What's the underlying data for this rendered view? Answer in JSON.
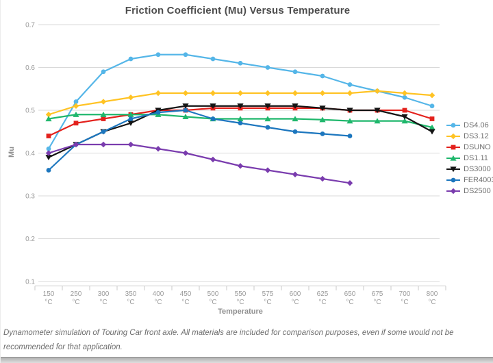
{
  "caption": "Dynamometer simulation of Touring Car front axle. All materials are included for comparison purposes, even if some would not be recommended for that application.",
  "chart_data": {
    "type": "line",
    "title": "Friction Coefficient (Mu) Versus Temperature",
    "xlabel": "Temperature",
    "ylabel": "Mu",
    "ylim": [
      0.1,
      0.7
    ],
    "ytick_step": 0.1,
    "grid": "horizontal",
    "legend_position": "right",
    "categories": [
      "150",
      "250",
      "300",
      "350",
      "400",
      "450",
      "500",
      "550",
      "575",
      "600",
      "625",
      "650",
      "675",
      "700",
      "800"
    ],
    "category_unit": "°C",
    "colors": {
      "grid": "#d9d9d9",
      "axis": "#c9c9c9",
      "tick_label": "#9a9a9a",
      "title_text": "#4d4d4d"
    },
    "series": [
      {
        "name": "DS4.06",
        "color": "#55B6E8",
        "marker": "circle",
        "values": [
          0.41,
          0.52,
          0.59,
          0.62,
          0.63,
          0.63,
          0.62,
          0.61,
          0.6,
          0.59,
          0.58,
          0.56,
          0.545,
          0.53,
          0.51
        ]
      },
      {
        "name": "DS3.12",
        "color": "#FFC324",
        "marker": "diamond",
        "values": [
          0.49,
          0.51,
          0.52,
          0.53,
          0.54,
          0.54,
          0.54,
          0.54,
          0.54,
          0.54,
          0.54,
          0.54,
          0.545,
          0.54,
          0.535
        ]
      },
      {
        "name": "DSUNO",
        "color": "#E3211C",
        "marker": "square",
        "values": [
          0.44,
          0.47,
          0.48,
          0.49,
          0.5,
          0.5,
          0.505,
          0.505,
          0.505,
          0.505,
          0.505,
          0.5,
          0.5,
          0.5,
          0.48
        ]
      },
      {
        "name": "DS1.11",
        "color": "#1FB76C",
        "marker": "triangle-up",
        "values": [
          0.48,
          0.49,
          0.49,
          0.49,
          0.49,
          0.485,
          0.48,
          0.48,
          0.48,
          0.48,
          0.478,
          0.475,
          0.475,
          0.475,
          0.46
        ]
      },
      {
        "name": "DS3000",
        "color": "#141414",
        "marker": "triangle-down",
        "values": [
          0.39,
          0.42,
          0.45,
          0.47,
          0.5,
          0.51,
          0.51,
          0.51,
          0.51,
          0.51,
          0.505,
          0.5,
          0.5,
          0.485,
          0.45
        ]
      },
      {
        "name": "FER4003",
        "color": "#1C76BE",
        "marker": "circle",
        "values": [
          0.36,
          0.42,
          0.45,
          0.48,
          0.495,
          0.5,
          0.48,
          0.47,
          0.46,
          0.45,
          0.445,
          0.44,
          null,
          null,
          null
        ]
      },
      {
        "name": "DS2500",
        "color": "#7A3CAE",
        "marker": "diamond",
        "values": [
          0.4,
          0.42,
          0.42,
          0.42,
          0.41,
          0.4,
          0.385,
          0.37,
          0.36,
          0.35,
          0.34,
          0.33,
          null,
          null,
          null
        ]
      }
    ]
  }
}
